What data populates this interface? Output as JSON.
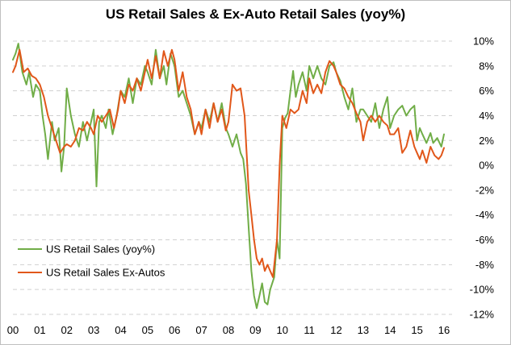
{
  "chart_data": {
    "type": "line",
    "title": "US Retail Sales & Ex-Auto Retail Sales (yoy%)",
    "xlabel": "",
    "ylabel": "",
    "ylim": [
      -12,
      10
    ],
    "y_ticks": [
      10,
      8,
      6,
      4,
      2,
      0,
      -2,
      -4,
      -6,
      -8,
      -10,
      -12
    ],
    "y_tick_labels": [
      "10%",
      "8%",
      "6%",
      "4%",
      "2%",
      "0%",
      "-2%",
      "-4%",
      "-6%",
      "-8%",
      "-10%",
      "-12%"
    ],
    "xlim": [
      2000,
      2016.3
    ],
    "x_ticks": [
      2000,
      2001,
      2002,
      2003,
      2004,
      2005,
      2006,
      2007,
      2008,
      2009,
      2010,
      2011,
      2012,
      2013,
      2014,
      2015,
      2016
    ],
    "x_tick_labels": [
      "00",
      "01",
      "02",
      "03",
      "04",
      "05",
      "06",
      "07",
      "08",
      "09",
      "10",
      "11",
      "12",
      "13",
      "14",
      "15",
      "16"
    ],
    "grid": "horizontal dashed",
    "legend_position": "bottom-left",
    "series": [
      {
        "name": "US Retail Sales (yoy%)",
        "color": "#70ad47",
        "x": [
          2000.0,
          2000.1,
          2000.2,
          2000.35,
          2000.5,
          2000.6,
          2000.75,
          2000.85,
          2001.0,
          2001.1,
          2001.2,
          2001.3,
          2001.45,
          2001.55,
          2001.7,
          2001.8,
          2001.9,
          2002.0,
          2002.15,
          2002.3,
          2002.45,
          2002.6,
          2002.75,
          2002.85,
          2003.0,
          2003.1,
          2003.2,
          2003.3,
          2003.45,
          2003.55,
          2003.7,
          2003.85,
          2004.0,
          2004.15,
          2004.3,
          2004.45,
          2004.6,
          2004.75,
          2004.9,
          2005.0,
          2005.15,
          2005.3,
          2005.45,
          2005.6,
          2005.7,
          2005.85,
          2006.0,
          2006.15,
          2006.3,
          2006.45,
          2006.6,
          2006.75,
          2006.9,
          2007.0,
          2007.15,
          2007.3,
          2007.45,
          2007.6,
          2007.75,
          2007.9,
          2008.0,
          2008.15,
          2008.3,
          2008.45,
          2008.55,
          2008.65,
          2008.75,
          2008.85,
          2008.95,
          2009.05,
          2009.15,
          2009.25,
          2009.35,
          2009.45,
          2009.55,
          2009.7,
          2009.8,
          2009.9,
          2010.0,
          2010.1,
          2010.2,
          2010.3,
          2010.4,
          2010.5,
          2010.6,
          2010.75,
          2010.9,
          2011.0,
          2011.15,
          2011.3,
          2011.45,
          2011.6,
          2011.75,
          2011.9,
          2012.0,
          2012.15,
          2012.3,
          2012.45,
          2012.6,
          2012.75,
          2012.9,
          2013.0,
          2013.15,
          2013.3,
          2013.45,
          2013.6,
          2013.75,
          2013.9,
          2014.0,
          2014.15,
          2014.3,
          2014.45,
          2014.6,
          2014.75,
          2014.9,
          2015.0,
          2015.1,
          2015.2,
          2015.35,
          2015.5,
          2015.6,
          2015.75,
          2015.9,
          2016.0
        ],
        "values": [
          8.5,
          9.0,
          9.8,
          7.5,
          6.5,
          7.5,
          5.5,
          6.5,
          6.0,
          4.0,
          2.5,
          0.5,
          3.5,
          2.0,
          3.0,
          -0.5,
          1.5,
          6.2,
          4.0,
          2.5,
          1.5,
          3.5,
          2.0,
          3.0,
          4.5,
          -1.7,
          3.5,
          4.0,
          3.0,
          4.5,
          2.5,
          4.0,
          6.0,
          5.5,
          7.0,
          5.0,
          7.0,
          6.5,
          8.0,
          7.5,
          6.5,
          9.3,
          7.0,
          8.0,
          6.5,
          9.0,
          8.0,
          5.5,
          6.0,
          5.0,
          4.0,
          2.5,
          3.5,
          3.0,
          4.5,
          3.5,
          5.0,
          3.5,
          5.0,
          3.0,
          2.5,
          1.5,
          2.5,
          1.0,
          0.5,
          -1.5,
          -5.0,
          -8.5,
          -10.5,
          -11.5,
          -10.5,
          -9.5,
          -11.0,
          -11.2,
          -10.0,
          -9.0,
          -6.0,
          -7.5,
          3.0,
          3.8,
          4.2,
          6.0,
          7.6,
          5.5,
          6.5,
          7.5,
          6.0,
          8.0,
          7.0,
          8.0,
          7.0,
          6.5,
          8.0,
          8.3,
          7.5,
          6.8,
          5.5,
          4.5,
          6.2,
          3.5,
          4.5,
          4.5,
          4.0,
          3.5,
          5.0,
          3.0,
          4.5,
          5.5,
          3.0,
          4.0,
          4.5,
          4.8,
          4.0,
          4.5,
          4.8,
          2.0,
          3.0,
          2.5,
          1.8,
          2.6,
          1.8,
          2.2,
          1.5,
          2.5
        ]
      },
      {
        "name": "US Retail Sales Ex-Autos",
        "color": "#e1571a",
        "x": [
          2000.0,
          2000.1,
          2000.25,
          2000.4,
          2000.55,
          2000.7,
          2000.85,
          2001.0,
          2001.15,
          2001.3,
          2001.45,
          2001.6,
          2001.75,
          2001.9,
          2002.0,
          2002.15,
          2002.3,
          2002.45,
          2002.6,
          2002.75,
          2002.9,
          2003.0,
          2003.15,
          2003.3,
          2003.45,
          2003.6,
          2003.75,
          2003.9,
          2004.0,
          2004.15,
          2004.3,
          2004.45,
          2004.6,
          2004.75,
          2004.9,
          2005.0,
          2005.15,
          2005.3,
          2005.45,
          2005.6,
          2005.75,
          2005.9,
          2006.0,
          2006.15,
          2006.3,
          2006.45,
          2006.6,
          2006.75,
          2006.9,
          2007.0,
          2007.15,
          2007.3,
          2007.45,
          2007.6,
          2007.75,
          2007.9,
          2008.0,
          2008.15,
          2008.3,
          2008.45,
          2008.6,
          2008.75,
          2008.85,
          2008.95,
          2009.05,
          2009.15,
          2009.25,
          2009.35,
          2009.45,
          2009.55,
          2009.65,
          2009.8,
          2009.9,
          2010.0,
          2010.15,
          2010.3,
          2010.45,
          2010.6,
          2010.75,
          2010.9,
          2011.0,
          2011.15,
          2011.3,
          2011.45,
          2011.6,
          2011.75,
          2011.9,
          2012.0,
          2012.15,
          2012.3,
          2012.45,
          2012.6,
          2012.75,
          2012.9,
          2013.0,
          2013.15,
          2013.3,
          2013.45,
          2013.6,
          2013.75,
          2013.9,
          2014.0,
          2014.15,
          2014.3,
          2014.45,
          2014.6,
          2014.75,
          2014.9,
          2015.0,
          2015.1,
          2015.2,
          2015.35,
          2015.5,
          2015.65,
          2015.8,
          2015.9,
          2016.0
        ],
        "values": [
          7.5,
          8.0,
          9.3,
          7.5,
          7.8,
          7.2,
          7.0,
          6.5,
          5.5,
          4.0,
          3.0,
          2.0,
          1.0,
          1.5,
          1.7,
          1.5,
          2.0,
          3.0,
          2.8,
          3.5,
          3.0,
          2.5,
          4.0,
          3.5,
          4.0,
          4.5,
          3.0,
          4.5,
          6.0,
          5.0,
          6.5,
          6.0,
          7.0,
          6.0,
          7.5,
          8.5,
          7.0,
          8.8,
          7.0,
          9.2,
          8.0,
          9.3,
          8.5,
          6.0,
          7.5,
          5.5,
          4.5,
          2.5,
          3.5,
          2.5,
          4.5,
          3.0,
          5.0,
          3.5,
          4.5,
          2.8,
          3.5,
          6.5,
          6.0,
          6.2,
          4.0,
          -2.0,
          -4.0,
          -6.0,
          -7.5,
          -8.0,
          -7.5,
          -8.5,
          -8.0,
          -8.5,
          -9.0,
          -6.0,
          0.0,
          4.0,
          3.0,
          4.5,
          4.2,
          4.5,
          6.0,
          5.0,
          7.0,
          5.8,
          6.5,
          5.8,
          7.5,
          8.4,
          8.0,
          7.5,
          6.5,
          6.2,
          5.5,
          5.0,
          4.2,
          3.5,
          2.0,
          3.5,
          4.0,
          3.5,
          4.0,
          3.5,
          3.2,
          2.5,
          2.5,
          3.0,
          1.0,
          1.5,
          2.8,
          1.5,
          1.0,
          0.5,
          1.2,
          0.2,
          1.5,
          0.8,
          0.5,
          0.8,
          1.4
        ]
      }
    ]
  }
}
